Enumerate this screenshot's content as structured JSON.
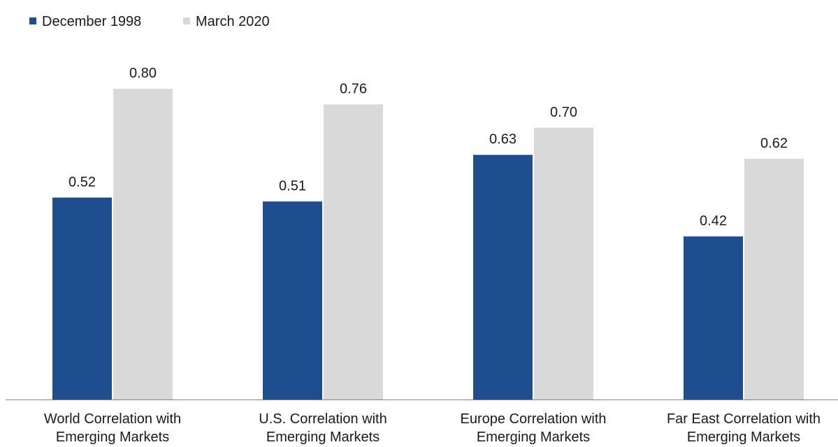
{
  "chart_data": {
    "type": "bar",
    "categories": [
      [
        "World Correlation with",
        "Emerging Markets"
      ],
      [
        "U.S. Correlation with",
        "Emerging Markets"
      ],
      [
        "Europe Correlation with",
        "Emerging Markets"
      ],
      [
        "Far East Correlation with",
        "Emerging Markets"
      ]
    ],
    "series": [
      {
        "name": "December 1998",
        "values": [
          0.52,
          0.51,
          0.63,
          0.42
        ],
        "labels": [
          "0.52",
          "0.51",
          "0.63",
          "0.42"
        ],
        "color": "#1f4e8f"
      },
      {
        "name": "March 2020",
        "values": [
          0.8,
          0.76,
          0.7,
          0.62
        ],
        "labels": [
          "0.80",
          "0.76",
          "0.70",
          "0.62"
        ],
        "color": "#d9d9d9"
      }
    ],
    "ylim": [
      0,
      0.9
    ],
    "grid": false,
    "legend_position": "top-left",
    "axis_color": "#7f7f7f"
  }
}
